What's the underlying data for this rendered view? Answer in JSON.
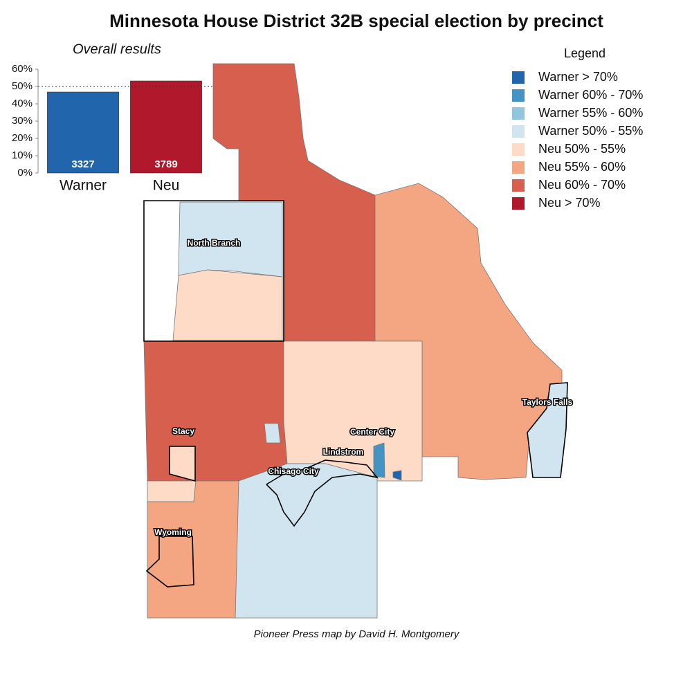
{
  "title": "Minnesota House District 32B special election by precinct",
  "chart_data": {
    "type": "bar",
    "subtitle": "Overall results",
    "categories": [
      "Warner",
      "Neu"
    ],
    "values": [
      46.8,
      53.2
    ],
    "votes": [
      3327,
      3789
    ],
    "colors": [
      "#2166ac",
      "#b2182b"
    ],
    "ylim": [
      0,
      60
    ],
    "yticks": [
      {
        "value": 0,
        "label": "0%"
      },
      {
        "value": 10,
        "label": "10%"
      },
      {
        "value": 20,
        "label": "20%"
      },
      {
        "value": 30,
        "label": "30%"
      },
      {
        "value": 40,
        "label": "40%"
      },
      {
        "value": 50,
        "label": "50%"
      },
      {
        "value": 60,
        "label": "60%"
      }
    ],
    "reference_line": 50
  },
  "map": {
    "legend_title": "Legend",
    "legend": [
      {
        "label": "Warner > 70%",
        "color": "#2166ac"
      },
      {
        "label": "Warner 60% - 70%",
        "color": "#4393c3"
      },
      {
        "label": "Warner 55% - 60%",
        "color": "#92c5de"
      },
      {
        "label": "Warner 50% - 55%",
        "color": "#d1e5f0"
      },
      {
        "label": "Neu 50% - 55%",
        "color": "#fddbc7"
      },
      {
        "label": "Neu 55% - 60%",
        "color": "#f4a582"
      },
      {
        "label": "Neu 60% - 70%",
        "color": "#d6604d"
      },
      {
        "label": "Neu > 70%",
        "color": "#b2182b"
      }
    ],
    "places": [
      "North Branch",
      "Stacy",
      "Wyoming",
      "Center City",
      "Lindstrom",
      "Chisago City",
      "Taylors Falls"
    ]
  },
  "credit": "Pioneer Press map by David H. Montgomery"
}
